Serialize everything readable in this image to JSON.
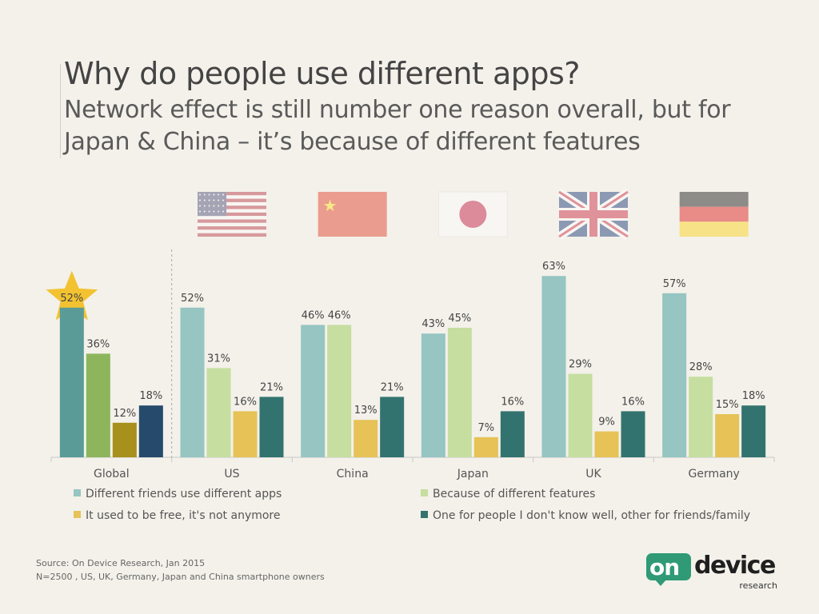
{
  "header": {
    "title": "Why do people use different apps?",
    "subtitle": "Network effect is still number one reason overall, but for Japan & China – it’s because of different features"
  },
  "chart_data": {
    "type": "bar",
    "categories": [
      "Global",
      "US",
      "China",
      "Japan",
      "UK",
      "Germany"
    ],
    "series": [
      {
        "name": "Different friends use different apps",
        "values": [
          52,
          52,
          46,
          43,
          63,
          57
        ]
      },
      {
        "name": "Because of different features",
        "values": [
          36,
          31,
          46,
          45,
          29,
          28
        ]
      },
      {
        "name": "It used to be free, it's not anymore",
        "values": [
          12,
          16,
          13,
          7,
          9,
          15
        ]
      },
      {
        "name": "One for people I don't know well, other for friends/family",
        "values": [
          18,
          21,
          21,
          16,
          16,
          18
        ]
      }
    ],
    "value_suffix": "%",
    "ylim": [
      0,
      70
    ],
    "legend": "bottom",
    "grid": false,
    "highlight": {
      "category": "Global",
      "series": 0,
      "marker": "star"
    }
  },
  "colors": {
    "series": [
      "#96c5c2",
      "#c6dea0",
      "#e6c257",
      "#33736f"
    ],
    "global_series": [
      "#5a9b98",
      "#8db65c",
      "#a8901c",
      "#264a6b"
    ],
    "star": "#f2c230"
  },
  "flags": [
    "us-flag-icon",
    "china-flag-icon",
    "japan-flag-icon",
    "uk-flag-icon",
    "germany-flag-icon"
  ],
  "source": {
    "line1": "Source: On Device Research, Jan 2015",
    "line2": "N=2500 , US, UK, Germany, Japan and China smartphone owners"
  },
  "logo": {
    "on": "on",
    "device": "device",
    "research": "research"
  }
}
